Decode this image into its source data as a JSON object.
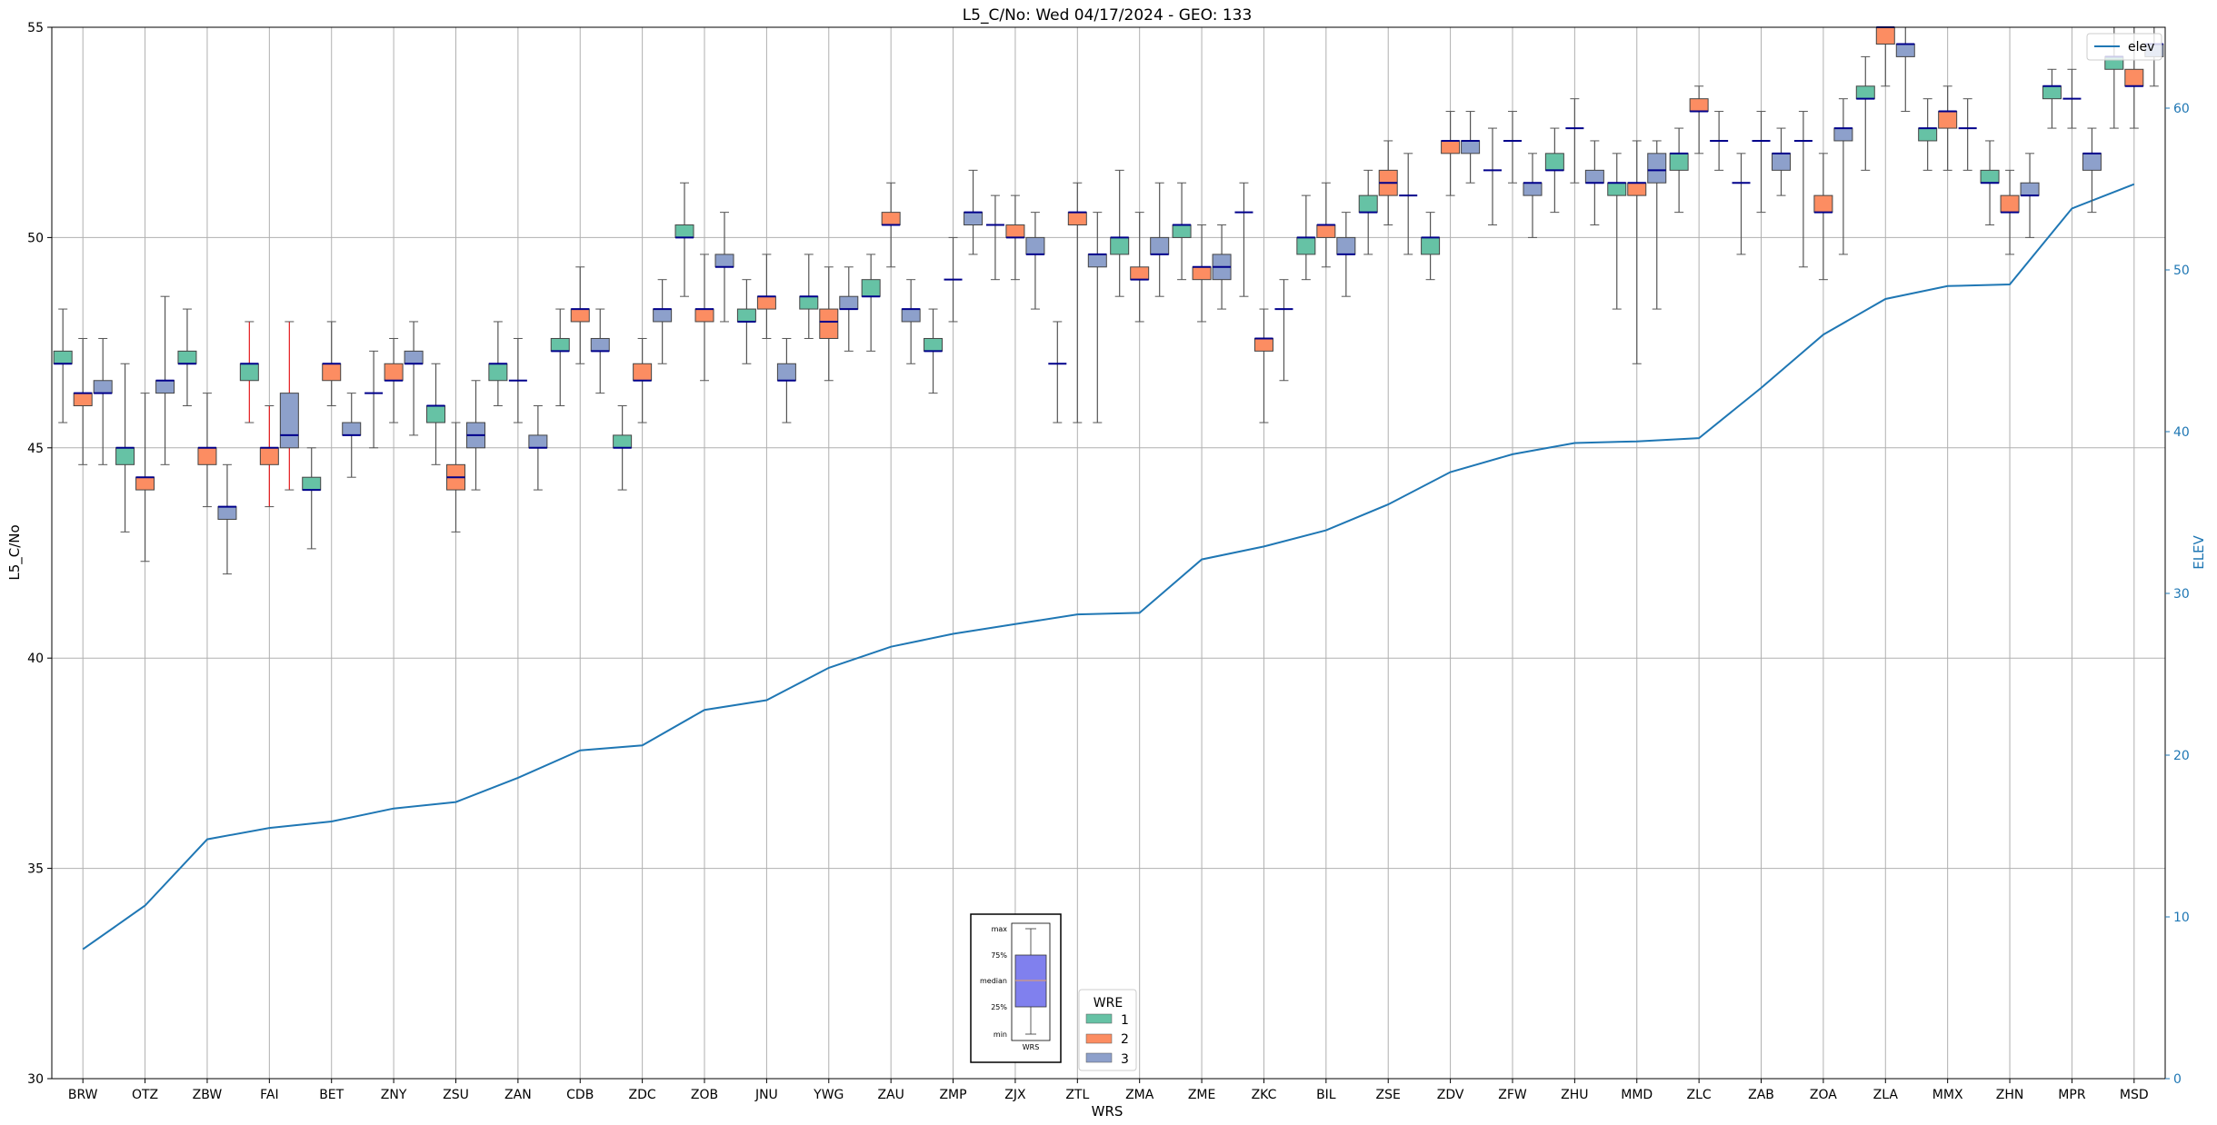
{
  "chart_data": {
    "type": "box",
    "title": "L5_C/No: Wed 04/17/2024 - GEO: 133",
    "xlabel": "WRS",
    "ylabel": "L5_C/No",
    "y2label": "ELEV",
    "ylim": [
      30,
      55
    ],
    "y2lim": [
      0,
      65
    ],
    "yticks": [
      30,
      35,
      40,
      45,
      50,
      55
    ],
    "y2ticks": [
      0,
      10,
      20,
      30,
      40,
      50,
      60
    ],
    "grid": true,
    "categories": [
      "BRW",
      "OTZ",
      "ZBW",
      "FAI",
      "BET",
      "ZNY",
      "ZSU",
      "ZAN",
      "CDB",
      "ZDC",
      "ZOB",
      "JNU",
      "YWG",
      "ZAU",
      "ZMP",
      "ZJX",
      "ZTL",
      "ZMA",
      "ZME",
      "ZKC",
      "BIL",
      "ZSE",
      "ZDV",
      "ZFW",
      "ZHU",
      "MMD",
      "ZLC",
      "ZAB",
      "ZOA",
      "ZLA",
      "MMX",
      "ZHN",
      "MPR",
      "MSD"
    ],
    "elev": {
      "name": "elev",
      "values": [
        8.0,
        10.7,
        14.8,
        15.5,
        15.9,
        16.7,
        17.1,
        18.6,
        20.3,
        20.6,
        22.8,
        23.4,
        25.4,
        26.7,
        27.5,
        28.1,
        28.7,
        28.8,
        32.1,
        32.9,
        33.9,
        35.5,
        37.5,
        38.6,
        39.3,
        39.4,
        39.6,
        42.7,
        46.0,
        48.2,
        49.0,
        49.1,
        53.8,
        55.3
      ]
    },
    "wre_legend": {
      "title": "WRE",
      "entries": [
        "1",
        "2",
        "3"
      ]
    },
    "series": [
      {
        "name": "1",
        "color": "#66c2a5",
        "boxes": [
          {
            "cat": "BRW",
            "min": 45.6,
            "q1": 47.0,
            "med": 47.0,
            "q3": 47.3,
            "max": 48.3
          },
          {
            "cat": "OTZ",
            "min": 43.0,
            "q1": 44.6,
            "med": 45.0,
            "q3": 45.0,
            "max": 47.0
          },
          {
            "cat": "ZBW",
            "min": 46.0,
            "q1": 47.0,
            "med": 47.0,
            "q3": 47.3,
            "max": 48.3
          },
          {
            "cat": "FAI",
            "min": 45.6,
            "q1": 46.6,
            "med": 47.0,
            "q3": 47.0,
            "max": 48.0,
            "whisker_color": "#e41a1c"
          },
          {
            "cat": "BET",
            "min": 42.6,
            "q1": 44.0,
            "med": 44.0,
            "q3": 44.3,
            "max": 45.0
          },
          {
            "cat": "ZNY",
            "min": 45.0,
            "q1": 46.3,
            "med": 46.3,
            "q3": 46.3,
            "max": 47.3
          },
          {
            "cat": "ZSU",
            "min": 44.6,
            "q1": 45.6,
            "med": 46.0,
            "q3": 46.0,
            "max": 47.0
          },
          {
            "cat": "ZAN",
            "min": 46.0,
            "q1": 46.6,
            "med": 47.0,
            "q3": 47.0,
            "max": 48.0
          },
          {
            "cat": "CDB",
            "min": 46.0,
            "q1": 47.3,
            "med": 47.3,
            "q3": 47.6,
            "max": 48.3
          },
          {
            "cat": "ZDC",
            "min": 44.0,
            "q1": 45.0,
            "med": 45.0,
            "q3": 45.3,
            "max": 46.0
          },
          {
            "cat": "ZOB",
            "min": 48.6,
            "q1": 50.0,
            "med": 50.0,
            "q3": 50.3,
            "max": 51.3
          },
          {
            "cat": "JNU",
            "min": 47.0,
            "q1": 48.0,
            "med": 48.0,
            "q3": 48.3,
            "max": 49.0
          },
          {
            "cat": "YWG",
            "min": 47.6,
            "q1": 48.3,
            "med": 48.6,
            "q3": 48.6,
            "max": 49.6
          },
          {
            "cat": "ZAU",
            "min": 47.3,
            "q1": 48.6,
            "med": 48.6,
            "q3": 49.0,
            "max": 49.6
          },
          {
            "cat": "ZMP",
            "min": 46.3,
            "q1": 47.3,
            "med": 47.3,
            "q3": 47.6,
            "max": 48.3
          },
          {
            "cat": "ZJX",
            "min": 49.0,
            "q1": 50.3,
            "med": 50.3,
            "q3": 50.3,
            "max": 51.0
          },
          {
            "cat": "ZTL",
            "min": 45.6,
            "q1": 47.0,
            "med": 47.0,
            "q3": 47.0,
            "max": 48.0
          },
          {
            "cat": "ZMA",
            "min": 48.6,
            "q1": 49.6,
            "med": 50.0,
            "q3": 50.0,
            "max": 51.6
          },
          {
            "cat": "ZME",
            "min": 49.0,
            "q1": 50.0,
            "med": 50.3,
            "q3": 50.3,
            "max": 51.3
          },
          {
            "cat": "ZKC",
            "min": 48.6,
            "q1": 50.6,
            "med": 50.6,
            "q3": 50.6,
            "max": 51.3
          },
          {
            "cat": "BIL",
            "min": 49.0,
            "q1": 49.6,
            "med": 50.0,
            "q3": 50.0,
            "max": 51.0
          },
          {
            "cat": "ZSE",
            "min": 49.6,
            "q1": 50.6,
            "med": 50.6,
            "q3": 51.0,
            "max": 51.6
          },
          {
            "cat": "ZDV",
            "min": 49.0,
            "q1": 49.6,
            "med": 50.0,
            "q3": 50.0,
            "max": 50.6
          },
          {
            "cat": "ZFW",
            "min": 50.3,
            "q1": 51.6,
            "med": 51.6,
            "q3": 51.6,
            "max": 52.6
          },
          {
            "cat": "ZHU",
            "min": 50.6,
            "q1": 51.6,
            "med": 51.6,
            "q3": 52.0,
            "max": 52.6
          },
          {
            "cat": "MMD",
            "min": 48.3,
            "q1": 51.0,
            "med": 51.3,
            "q3": 51.3,
            "max": 52.0
          },
          {
            "cat": "ZLC",
            "min": 50.6,
            "q1": 51.6,
            "med": 52.0,
            "q3": 52.0,
            "max": 52.6
          },
          {
            "cat": "ZAB",
            "min": 49.6,
            "q1": 51.3,
            "med": 51.3,
            "q3": 51.3,
            "max": 52.0
          },
          {
            "cat": "ZOA",
            "min": 49.3,
            "q1": 52.3,
            "med": 52.3,
            "q3": 52.3,
            "max": 53.0
          },
          {
            "cat": "ZLA",
            "min": 51.6,
            "q1": 53.3,
            "med": 53.3,
            "q3": 53.6,
            "max": 54.3
          },
          {
            "cat": "MMX",
            "min": 51.6,
            "q1": 52.3,
            "med": 52.6,
            "q3": 52.6,
            "max": 53.3
          },
          {
            "cat": "ZHN",
            "min": 50.3,
            "q1": 51.3,
            "med": 51.3,
            "q3": 51.6,
            "max": 52.3
          },
          {
            "cat": "MPR",
            "min": 52.6,
            "q1": 53.3,
            "med": 53.6,
            "q3": 53.6,
            "max": 54.0
          },
          {
            "cat": "MSD",
            "min": 52.6,
            "q1": 54.0,
            "med": 54.3,
            "q3": 54.3,
            "max": 55.0
          }
        ]
      },
      {
        "name": "2",
        "color": "#fc8d62",
        "boxes": [
          {
            "cat": "BRW",
            "min": 44.6,
            "q1": 46.0,
            "med": 46.3,
            "q3": 46.3,
            "max": 47.6
          },
          {
            "cat": "OTZ",
            "min": 42.3,
            "q1": 44.0,
            "med": 44.3,
            "q3": 44.3,
            "max": 46.3
          },
          {
            "cat": "ZBW",
            "min": 43.6,
            "q1": 44.6,
            "med": 45.0,
            "q3": 45.0,
            "max": 46.3
          },
          {
            "cat": "FAI",
            "min": 43.6,
            "q1": 44.6,
            "med": 45.0,
            "q3": 45.0,
            "max": 46.0,
            "whisker_color": "#e41a1c"
          },
          {
            "cat": "BET",
            "min": 46.0,
            "q1": 46.6,
            "med": 47.0,
            "q3": 47.0,
            "max": 48.0
          },
          {
            "cat": "ZNY",
            "min": 45.6,
            "q1": 46.6,
            "med": 46.6,
            "q3": 47.0,
            "max": 47.6
          },
          {
            "cat": "ZSU",
            "min": 43.0,
            "q1": 44.0,
            "med": 44.3,
            "q3": 44.6,
            "max": 45.6
          },
          {
            "cat": "ZAN",
            "min": 45.6,
            "q1": 46.6,
            "med": 46.6,
            "q3": 46.6,
            "max": 47.6
          },
          {
            "cat": "CDB",
            "min": 47.0,
            "q1": 48.0,
            "med": 48.3,
            "q3": 48.3,
            "max": 49.3
          },
          {
            "cat": "ZDC",
            "min": 45.6,
            "q1": 46.6,
            "med": 46.6,
            "q3": 47.0,
            "max": 47.6
          },
          {
            "cat": "ZOB",
            "min": 46.6,
            "q1": 48.0,
            "med": 48.3,
            "q3": 48.3,
            "max": 49.6
          },
          {
            "cat": "JNU",
            "min": 47.6,
            "q1": 48.3,
            "med": 48.6,
            "q3": 48.6,
            "max": 49.6
          },
          {
            "cat": "YWG",
            "min": 46.6,
            "q1": 47.6,
            "med": 48.0,
            "q3": 48.3,
            "max": 49.3
          },
          {
            "cat": "ZAU",
            "min": 49.3,
            "q1": 50.3,
            "med": 50.3,
            "q3": 50.6,
            "max": 51.3
          },
          {
            "cat": "ZMP",
            "min": 48.0,
            "q1": 49.0,
            "med": 49.0,
            "q3": 49.0,
            "max": 50.0
          },
          {
            "cat": "ZJX",
            "min": 49.0,
            "q1": 50.0,
            "med": 50.0,
            "q3": 50.3,
            "max": 51.0
          },
          {
            "cat": "ZTL",
            "min": 45.6,
            "q1": 50.3,
            "med": 50.6,
            "q3": 50.6,
            "max": 51.3
          },
          {
            "cat": "ZMA",
            "min": 48.0,
            "q1": 49.0,
            "med": 49.0,
            "q3": 49.3,
            "max": 50.6
          },
          {
            "cat": "ZME",
            "min": 48.0,
            "q1": 49.0,
            "med": 49.3,
            "q3": 49.3,
            "max": 50.3
          },
          {
            "cat": "ZKC",
            "min": 45.6,
            "q1": 47.3,
            "med": 47.6,
            "q3": 47.6,
            "max": 48.3
          },
          {
            "cat": "BIL",
            "min": 49.3,
            "q1": 50.0,
            "med": 50.3,
            "q3": 50.3,
            "max": 51.3
          },
          {
            "cat": "ZSE",
            "min": 50.3,
            "q1": 51.0,
            "med": 51.3,
            "q3": 51.6,
            "max": 52.3
          },
          {
            "cat": "ZDV",
            "min": 51.0,
            "q1": 52.0,
            "med": 52.3,
            "q3": 52.3,
            "max": 53.0
          },
          {
            "cat": "ZFW",
            "min": 51.3,
            "q1": 52.3,
            "med": 52.3,
            "q3": 52.3,
            "max": 53.0
          },
          {
            "cat": "ZHU",
            "min": 51.3,
            "q1": 52.6,
            "med": 52.6,
            "q3": 52.6,
            "max": 53.3
          },
          {
            "cat": "MMD",
            "min": 47.0,
            "q1": 51.0,
            "med": 51.3,
            "q3": 51.3,
            "max": 52.3
          },
          {
            "cat": "ZLC",
            "min": 52.0,
            "q1": 53.0,
            "med": 53.0,
            "q3": 53.3,
            "max": 53.6
          },
          {
            "cat": "ZAB",
            "min": 50.6,
            "q1": 52.3,
            "med": 52.3,
            "q3": 52.3,
            "max": 53.0
          },
          {
            "cat": "ZOA",
            "min": 49.0,
            "q1": 50.6,
            "med": 50.6,
            "q3": 51.0,
            "max": 52.0
          },
          {
            "cat": "ZLA",
            "min": 53.6,
            "q1": 54.6,
            "med": 55.0,
            "q3": 55.0,
            "max": 55.0
          },
          {
            "cat": "MMX",
            "min": 51.6,
            "q1": 52.6,
            "med": 53.0,
            "q3": 53.0,
            "max": 53.6
          },
          {
            "cat": "ZHN",
            "min": 49.6,
            "q1": 50.6,
            "med": 50.6,
            "q3": 51.0,
            "max": 51.6
          },
          {
            "cat": "MPR",
            "min": 52.6,
            "q1": 53.3,
            "med": 53.3,
            "q3": 53.3,
            "max": 54.0
          },
          {
            "cat": "MSD",
            "min": 52.6,
            "q1": 53.6,
            "med": 53.6,
            "q3": 54.0,
            "max": 55.0
          }
        ]
      },
      {
        "name": "3",
        "color": "#8da0cb",
        "boxes": [
          {
            "cat": "BRW",
            "min": 44.6,
            "q1": 46.3,
            "med": 46.3,
            "q3": 46.6,
            "max": 47.6
          },
          {
            "cat": "OTZ",
            "min": 44.6,
            "q1": 46.3,
            "med": 46.6,
            "q3": 46.6,
            "max": 48.6
          },
          {
            "cat": "ZBW",
            "min": 42.0,
            "q1": 43.3,
            "med": 43.6,
            "q3": 43.6,
            "max": 44.6
          },
          {
            "cat": "FAI",
            "min": 44.0,
            "q1": 45.0,
            "med": 45.3,
            "q3": 46.3,
            "max": 48.0,
            "whisker_color": "#e41a1c"
          },
          {
            "cat": "BET",
            "min": 44.3,
            "q1": 45.3,
            "med": 45.3,
            "q3": 45.6,
            "max": 46.3
          },
          {
            "cat": "ZNY",
            "min": 45.3,
            "q1": 47.0,
            "med": 47.0,
            "q3": 47.3,
            "max": 48.0
          },
          {
            "cat": "ZSU",
            "min": 44.0,
            "q1": 45.0,
            "med": 45.3,
            "q3": 45.6,
            "max": 46.6
          },
          {
            "cat": "ZAN",
            "min": 44.0,
            "q1": 45.0,
            "med": 45.0,
            "q3": 45.3,
            "max": 46.0
          },
          {
            "cat": "CDB",
            "min": 46.3,
            "q1": 47.3,
            "med": 47.3,
            "q3": 47.6,
            "max": 48.3
          },
          {
            "cat": "ZDC",
            "min": 47.0,
            "q1": 48.0,
            "med": 48.3,
            "q3": 48.3,
            "max": 49.0
          },
          {
            "cat": "ZOB",
            "min": 48.0,
            "q1": 49.3,
            "med": 49.3,
            "q3": 49.6,
            "max": 50.6
          },
          {
            "cat": "JNU",
            "min": 45.6,
            "q1": 46.6,
            "med": 46.6,
            "q3": 47.0,
            "max": 47.6
          },
          {
            "cat": "YWG",
            "min": 47.3,
            "q1": 48.3,
            "med": 48.3,
            "q3": 48.6,
            "max": 49.3
          },
          {
            "cat": "ZAU",
            "min": 47.0,
            "q1": 48.0,
            "med": 48.3,
            "q3": 48.3,
            "max": 49.0
          },
          {
            "cat": "ZMP",
            "min": 49.6,
            "q1": 50.3,
            "med": 50.6,
            "q3": 50.6,
            "max": 51.6
          },
          {
            "cat": "ZJX",
            "min": 48.3,
            "q1": 49.6,
            "med": 49.6,
            "q3": 50.0,
            "max": 50.6
          },
          {
            "cat": "ZTL",
            "min": 45.6,
            "q1": 49.3,
            "med": 49.6,
            "q3": 49.6,
            "max": 50.6
          },
          {
            "cat": "ZMA",
            "min": 48.6,
            "q1": 49.6,
            "med": 49.6,
            "q3": 50.0,
            "max": 51.3
          },
          {
            "cat": "ZME",
            "min": 48.3,
            "q1": 49.0,
            "med": 49.3,
            "q3": 49.6,
            "max": 50.3
          },
          {
            "cat": "ZKC",
            "min": 46.6,
            "q1": 48.3,
            "med": 48.3,
            "q3": 48.3,
            "max": 49.0
          },
          {
            "cat": "BIL",
            "min": 48.6,
            "q1": 49.6,
            "med": 49.6,
            "q3": 50.0,
            "max": 50.6
          },
          {
            "cat": "ZSE",
            "min": 49.6,
            "q1": 51.0,
            "med": 51.0,
            "q3": 51.0,
            "max": 52.0
          },
          {
            "cat": "ZDV",
            "min": 51.3,
            "q1": 52.0,
            "med": 52.3,
            "q3": 52.3,
            "max": 53.0
          },
          {
            "cat": "ZFW",
            "min": 50.0,
            "q1": 51.0,
            "med": 51.3,
            "q3": 51.3,
            "max": 52.0
          },
          {
            "cat": "ZHU",
            "min": 50.3,
            "q1": 51.3,
            "med": 51.3,
            "q3": 51.6,
            "max": 52.3
          },
          {
            "cat": "MMD",
            "min": 48.3,
            "q1": 51.3,
            "med": 51.6,
            "q3": 52.0,
            "max": 52.3
          },
          {
            "cat": "ZLC",
            "min": 51.6,
            "q1": 52.3,
            "med": 52.3,
            "q3": 52.3,
            "max": 53.0
          },
          {
            "cat": "ZAB",
            "min": 51.0,
            "q1": 51.6,
            "med": 52.0,
            "q3": 52.0,
            "max": 52.6
          },
          {
            "cat": "ZOA",
            "min": 49.6,
            "q1": 52.3,
            "med": 52.6,
            "q3": 52.6,
            "max": 53.3
          },
          {
            "cat": "ZLA",
            "min": 53.0,
            "q1": 54.3,
            "med": 54.6,
            "q3": 54.6,
            "max": 55.0
          },
          {
            "cat": "MMX",
            "min": 51.6,
            "q1": 52.6,
            "med": 52.6,
            "q3": 52.6,
            "max": 53.3
          },
          {
            "cat": "ZHN",
            "min": 50.0,
            "q1": 51.0,
            "med": 51.0,
            "q3": 51.3,
            "max": 52.0
          },
          {
            "cat": "MPR",
            "min": 50.6,
            "q1": 51.6,
            "med": 52.0,
            "q3": 52.0,
            "max": 52.6
          },
          {
            "cat": "MSD",
            "min": 53.6,
            "q1": 54.3,
            "med": 54.6,
            "q3": 54.6,
            "max": 55.0
          }
        ]
      }
    ],
    "box_key": {
      "labels": [
        "max",
        "75%",
        "median",
        "25%",
        "min"
      ],
      "xlabel": "WRS"
    }
  },
  "colors": {
    "elev_line": "#1f77b4",
    "median": "#00008b",
    "whisker": "#555555",
    "grid": "#b0b0b0"
  }
}
